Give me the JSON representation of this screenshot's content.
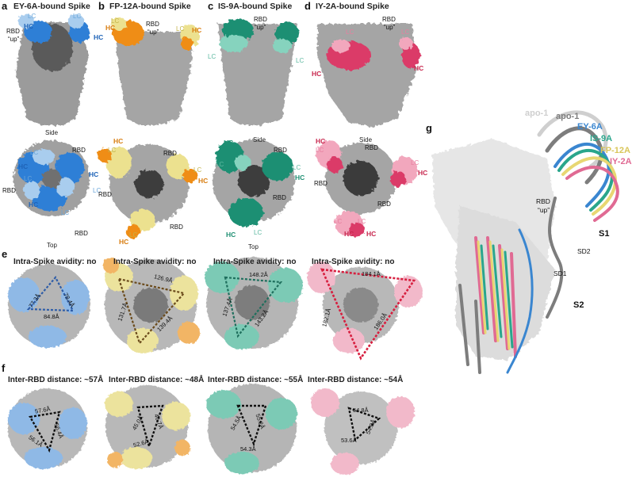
{
  "colors": {
    "ey_hc": "#2f7fd6",
    "ey_lc": "#a9cdee",
    "fp_hc": "#ef8d12",
    "fp_lc": "#ece18f",
    "is_hc": "#1f8f73",
    "is_lc": "#86d3be",
    "iy_hc": "#db3a67",
    "iy_lc": "#f2a7bd",
    "spike": "#a9a9a9",
    "spike_dark": "#4a4a4a",
    "apo_light": "#cfcfcf",
    "apo_dark": "#7d7d7d"
  },
  "panel_labels": [
    "a",
    "b",
    "c",
    "d",
    "e",
    "f",
    "g"
  ],
  "titles": [
    "EY-6A-bound Spike",
    "FP-12A-bound Spike",
    "IS-9A-bound Spike",
    "IY-2A-bound Spike"
  ],
  "labels": {
    "side": "Side",
    "top": "Top",
    "hc": "HC",
    "lc": "LC",
    "rbd": "RBD",
    "rbd_up_line1": "RBD",
    "rbd_up_line2": "“up”",
    "s1": "S1",
    "s2": "S2",
    "sd1": "SD1",
    "sd2": "SD2"
  },
  "row_e_titles": [
    "Intra-Spike avidity: no",
    "Intra-Spike avidity: no",
    "Intra-Spike avidity: no",
    "Intra-Spike avidity: no"
  ],
  "row_f_titles": [
    "Inter-RBD distance: ~57Å",
    "Inter-RBD distance: ~48Å",
    "Inter-RBD distance: ~55Å",
    "Inter-RBD distance: ~54Å"
  ],
  "e_distances": [
    [
      "77.3Å",
      "78.4Å",
      "84.8Å"
    ],
    [
      "126.9Å",
      "131.7Å",
      "139.4Å"
    ],
    [
      "148.2Å",
      "137.4Å",
      "143.2Å"
    ],
    [
      "184.1Å",
      "182.1Å",
      "186.0Å"
    ]
  ],
  "f_distances": [
    [
      "57.6Å",
      "56.4Å",
      "56.1Å"
    ],
    [
      "45.0Å",
      "46.7Å",
      "52.6Å"
    ],
    [
      "54.5Å",
      "55.2Å",
      "54.3Å"
    ],
    [
      "54.8Å",
      "54.0Å",
      "53.6Å"
    ]
  ],
  "legend_g": [
    {
      "text": "apo-1",
      "color": "#cfcfcf"
    },
    {
      "text": "apo-1",
      "color": "#7d7d7d"
    },
    {
      "text": "EY-6A",
      "color": "#3a86d0"
    },
    {
      "text": "IS-9A",
      "color": "#2aa68c"
    },
    {
      "text": "FP-12A",
      "color": "#d9c65a"
    },
    {
      "text": "IY-2A",
      "color": "#e06a93"
    }
  ]
}
